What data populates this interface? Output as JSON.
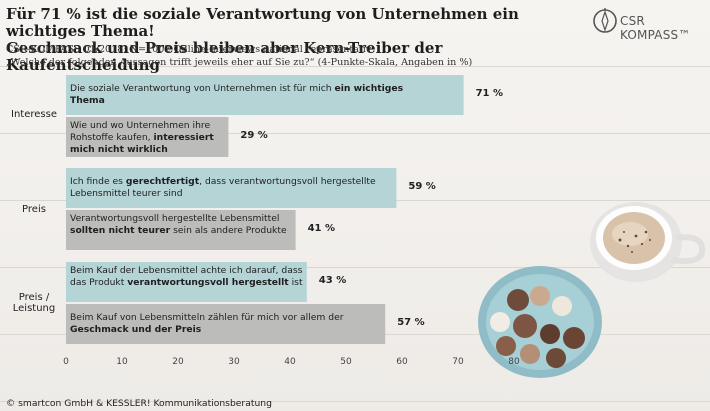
{
  "header": {
    "title_line1": "Für 71 % ist die soziale Verantwortung von Unternehmen ein wichtiges Thema!",
    "title_line2": "Geschmack  und Preis bleiben aber Kern-Treiber der Kaufentscheidung",
    "subtitle": "CSR-KOMPASS 01/2018; N=1002 Online-Interviews national repräsentativ",
    "question": "„Welche der folgenden Aussagen trifft jeweils eher auf Sie zu?“ (4-Punkte-Skala, Angaben in %)"
  },
  "logo": {
    "text": "CSR KOMPASS™"
  },
  "footer": {
    "text": "© smartcon GmbH & KESSLER! Kommunikationsberatung"
  },
  "colors": {
    "teal": "#b5d4d5",
    "grey": "#bcbcbb",
    "background": "#f1efec"
  },
  "chart_data": {
    "type": "bar",
    "orientation": "horizontal",
    "x_ticks": [
      "0",
      "10",
      "20",
      "30",
      "40",
      "50",
      "60",
      "70",
      "80"
    ],
    "xlim": [
      0,
      80
    ],
    "grid": false,
    "groups": [
      {
        "label": "Interesse",
        "bars": [
          {
            "text_pre": "Die soziale Verantwortung von Unternehmen ist für mich ",
            "text_bold": "ein wichtiges Thema",
            "text_post": "",
            "value": 71,
            "value_label": "71 %",
            "color": "teal"
          },
          {
            "text_pre": "Wie und wo Unternehmen ihre Rohstoffe kaufen, ",
            "text_bold": "interessiert mich nicht wirklich",
            "text_post": "",
            "value": 29,
            "value_label": "29 %",
            "color": "grey"
          }
        ]
      },
      {
        "label": "Preis",
        "bars": [
          {
            "text_pre": "Ich finde es ",
            "text_bold": "gerechtfertigt",
            "text_post": ", dass verantwortungsvoll hergestellte Lebensmittel teurer sind",
            "value": 59,
            "value_label": "59 %",
            "color": "teal"
          },
          {
            "text_pre": "Verantwortungsvoll hergestellte Lebensmittel ",
            "text_bold": "sollten nicht teurer",
            "text_post": " sein als andere Produkte",
            "value": 41,
            "value_label": "41 %",
            "color": "grey"
          }
        ]
      },
      {
        "label": "Preis /\nLeistung",
        "bars": [
          {
            "text_pre": "Beim Kauf der Lebensmittel achte ich darauf, dass das Produkt ",
            "text_bold": "verantwortungsvoll hergestellt",
            "text_post": " ist",
            "value": 43,
            "value_label": "43 %",
            "color": "teal"
          },
          {
            "text_pre": "Beim Kauf von Lebensmitteln zählen für mich vor allem der ",
            "text_bold": "Geschmack und der Preis",
            "text_post": "",
            "value": 57,
            "value_label": "57 %",
            "color": "grey"
          }
        ]
      }
    ]
  }
}
